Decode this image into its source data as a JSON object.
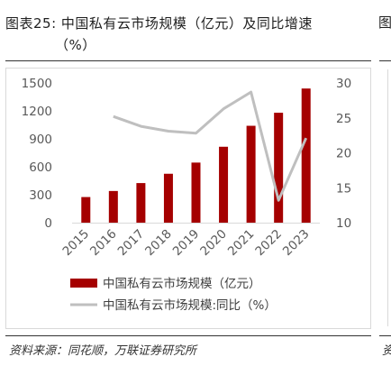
{
  "title": {
    "line1": "图表25:  中国私有云市场规模（亿元）及同比增速",
    "line2": "（%）"
  },
  "right_panel_title_fragment": "图",
  "source": "资料来源：同花顺，万联证券研究所",
  "source_cut_fragment": "资",
  "colors": {
    "bar": "#a50000",
    "line": "#bfbfbf",
    "axis_text": "#595959"
  },
  "chart_data": {
    "type": "bar",
    "categories": [
      "2015",
      "2016",
      "2017",
      "2018",
      "2019",
      "2020",
      "2021",
      "2022",
      "2023"
    ],
    "series": [
      {
        "name": "中国私有云市场规模（亿元）",
        "type": "bar",
        "axis": "left",
        "values": [
          275,
          340,
          425,
          525,
          645,
          815,
          1040,
          1180,
          1440
        ]
      },
      {
        "name": "中国私有云市场规模:同比（%）",
        "type": "line",
        "axis": "right",
        "values": [
          null,
          25.2,
          23.8,
          23.1,
          22.8,
          26.3,
          28.7,
          13.2,
          22.1
        ]
      }
    ],
    "ylim_left": [
      0,
      1500
    ],
    "yticks_left": [
      0,
      300,
      600,
      900,
      1200,
      1500
    ],
    "ylim_right": [
      10,
      30
    ],
    "yticks_right": [
      10,
      15,
      20,
      25,
      30
    ],
    "legend_position": "bottom"
  }
}
